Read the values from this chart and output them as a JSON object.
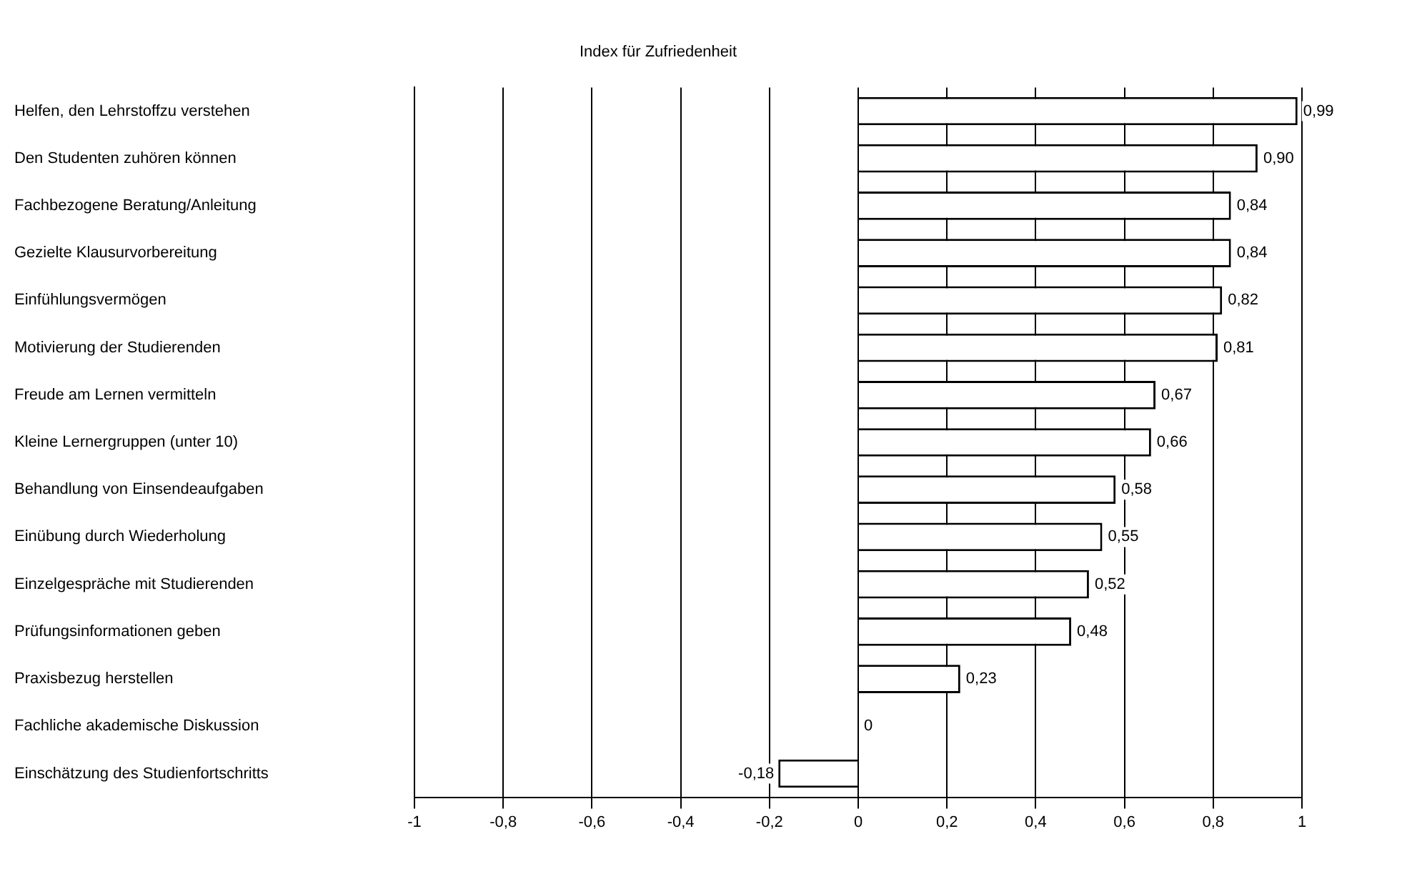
{
  "chart_data": {
    "type": "bar",
    "orientation": "horizontal",
    "title": "Index für Zufriedenheit",
    "categories": [
      "Helfen, den Lehrstoffzu verstehen",
      "Den Studenten zuhören können",
      "Fachbezogene Beratung/Anleitung",
      "Gezielte Klausurvorbereitung",
      "Einfühlungsvermögen",
      "Motivierung der Studierenden",
      "Freude am Lernen vermitteln",
      "Kleine Lernergruppen (unter 10)",
      "Behandlung von Einsendeaufgaben",
      "Einübung durch Wiederholung",
      "Einzelgespräche mit Studierenden",
      "Prüfungsinformationen geben",
      "Praxisbezug herstellen",
      "Fachliche akademische Diskussion",
      "Einschätzung des Studienfortschritts"
    ],
    "values": [
      0.99,
      0.9,
      0.84,
      0.84,
      0.82,
      0.81,
      0.67,
      0.66,
      0.58,
      0.55,
      0.52,
      0.48,
      0.23,
      0,
      -0.18
    ],
    "value_labels": [
      "0,99",
      "0,90",
      "0,84",
      "0,84",
      "0,82",
      "0,81",
      "0,67",
      "0,66",
      "0,58",
      "0,55",
      "0,52",
      "0,48",
      "0,23",
      "0",
      "-0,18"
    ],
    "color": "#ffffff",
    "xlim": [
      -1,
      1
    ],
    "xticks": [
      -1,
      {
        "value": -0.8,
        "label": "-0,8"
      },
      {
        "value": -0.6,
        "label": "-0,6"
      },
      {
        "value": -0.4,
        "label": "-0,4"
      },
      {
        "value": -0.2,
        "label": "-0,2"
      },
      0,
      {
        "value": 0.2,
        "label": "0,2"
      },
      {
        "value": 0.4,
        "label": "0,4"
      },
      {
        "value": 0.6,
        "label": "0,6"
      },
      {
        "value": 0.8,
        "label": "0,8"
      },
      1
    ],
    "grid": "x",
    "legend": false
  }
}
